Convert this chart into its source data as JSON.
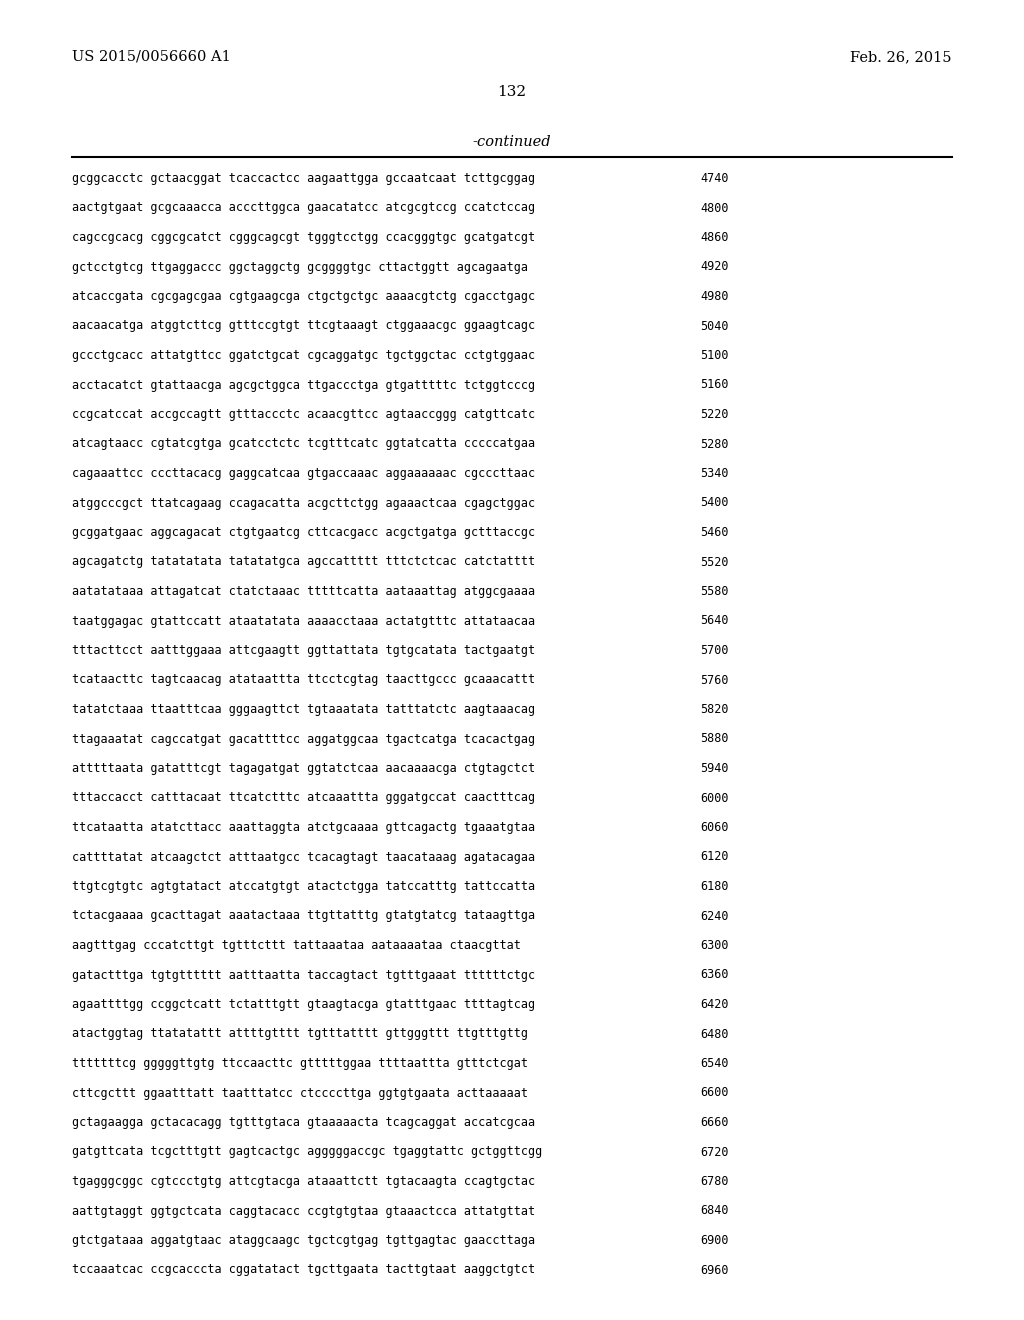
{
  "patent_number": "US 2015/0056660 A1",
  "date": "Feb. 26, 2015",
  "page_number": "132",
  "continued_label": "-continued",
  "background_color": "#ffffff",
  "text_color": "#000000",
  "font_size_header": 10.5,
  "font_size_sequence": 8.5,
  "font_size_page": 11,
  "sequence_lines": [
    [
      "gcggcacctc gctaacggat tcaccactcc aagaattgga gccaatcaat tcttgcggag",
      "4740"
    ],
    [
      "aactgtgaat gcgcaaacca acccttggca gaacatatcc atcgcgtccg ccatctccag",
      "4800"
    ],
    [
      "cagccgcacg cggcgcatct cgggcagcgt tgggtcctgg ccacgggtgc gcatgatcgt",
      "4860"
    ],
    [
      "gctcctgtcg ttgaggaccc ggctaggctg gcggggtgc cttactggtt agcagaatga",
      "4920"
    ],
    [
      "atcaccgata cgcgagcgaa cgtgaagcga ctgctgctgc aaaacgtctg cgacctgagc",
      "4980"
    ],
    [
      "aacaacatga atggtcttcg gtttccgtgt ttcgtaaagt ctggaaacgc ggaagtcagc",
      "5040"
    ],
    [
      "gccctgcacc attatgttcc ggatctgcat cgcaggatgc tgctggctac cctgtggaac",
      "5100"
    ],
    [
      "acctacatct gtattaacga agcgctggca ttgaccctga gtgatttttc tctggtcccg",
      "5160"
    ],
    [
      "ccgcatccat accgccagtt gtttaccctc acaacgttcc agtaaccggg catgttcatc",
      "5220"
    ],
    [
      "atcagtaacc cgtatcgtga gcatcctctc tcgtttcatc ggtatcatta cccccatgaa",
      "5280"
    ],
    [
      "cagaaattcc cccttacacg gaggcatcaa gtgaccaaac aggaaaaaac cgcccttaac",
      "5340"
    ],
    [
      "atggcccgct ttatcagaag ccagacatta acgcttctgg agaaactcaa cgagctggac",
      "5400"
    ],
    [
      "gcggatgaac aggcagacat ctgtgaatcg cttcacgacc acgctgatga gctttaccgc",
      "5460"
    ],
    [
      "agcagatctg tatatatata tatatatgca agccattttt tttctctcac catctatttt",
      "5520"
    ],
    [
      "aatatataaa attagatcat ctatctaaac tttttcatta aataaattag atggcgaaaa",
      "5580"
    ],
    [
      "taatggagac gtattccatt ataatatata aaaacctaaa actatgtttc attataacaa",
      "5640"
    ],
    [
      "tttacttcct aatttggaaa attcgaagtt ggttattata tgtgcatata tactgaatgt",
      "5700"
    ],
    [
      "tcataacttc tagtcaacag atataattta ttcctcgtag taacttgccc gcaaacattt",
      "5760"
    ],
    [
      "tatatctaaa ttaatttcaa gggaagttct tgtaaatata tatttatctc aagtaaacag",
      "5820"
    ],
    [
      "ttagaaatat cagccatgat gacattttcc aggatggcaa tgactcatga tcacactgag",
      "5880"
    ],
    [
      "atttttaata gatatttcgt tagagatgat ggtatctcaa aacaaaacga ctgtagctct",
      "5940"
    ],
    [
      "tttaccacct catttacaat ttcatctttc atcaaattta gggatgccat caactttcag",
      "6000"
    ],
    [
      "ttcataatta atatcttacc aaattaggta atctgcaaaa gttcagactg tgaaatgtaa",
      "6060"
    ],
    [
      "cattttatat atcaagctct atttaatgcc tcacagtagt taacataaag agatacagaa",
      "6120"
    ],
    [
      "ttgtcgtgtc agtgtatact atccatgtgt atactctgga tatccatttg tattccatta",
      "6180"
    ],
    [
      "tctacgaaaa gcacttagat aaatactaaa ttgttatttg gtatgtatcg tataagttga",
      "6240"
    ],
    [
      "aagtttgag cccatcttgt tgtttcttt tattaaataa aataaaataa ctaacgttat",
      "6300"
    ],
    [
      "gatactttga tgtgtttttt aatttaatta taccagtact tgtttgaaat ttttttctgc",
      "6360"
    ],
    [
      "agaattttgg ccggctcatt tctatttgtt gtaagtacga gtatttgaac ttttagtcag",
      "6420"
    ],
    [
      "atactggtag ttatatattt attttgtttt tgtttatttt gttgggttt ttgtttgttg",
      "6480"
    ],
    [
      "tttttttcg gggggttgtg ttccaacttc gtttttggaa ttttaattta gtttctcgat",
      "6540"
    ],
    [
      "cttcgcttt ggaatttatt taatttatcc ctccccttga ggtgtgaata acttaaaaat",
      "6600"
    ],
    [
      "gctagaagga gctacacagg tgtttgtaca gtaaaaacta tcagcaggat accatcgcaa",
      "6660"
    ],
    [
      "gatgttcata tcgctttgtt gagtcactgc agggggaccgc tgaggtattc gctggttcgg",
      "6720"
    ],
    [
      "tgagggcggc cgtccctgtg attcgtacga ataaattctt tgtacaagta ccagtgctac",
      "6780"
    ],
    [
      "aattgtaggt ggtgctcata caggtacacc ccgtgtgtaa gtaaactcca attatgttat",
      "6840"
    ],
    [
      "gtctgataaa aggatgtaac ataggcaagc tgctcgtgag tgttgagtac gaaccttaga",
      "6900"
    ],
    [
      "tccaaatcac ccgcacccta cggatatact tgcttgaata tacttgtaat aaggctgtct",
      "6960"
    ]
  ]
}
